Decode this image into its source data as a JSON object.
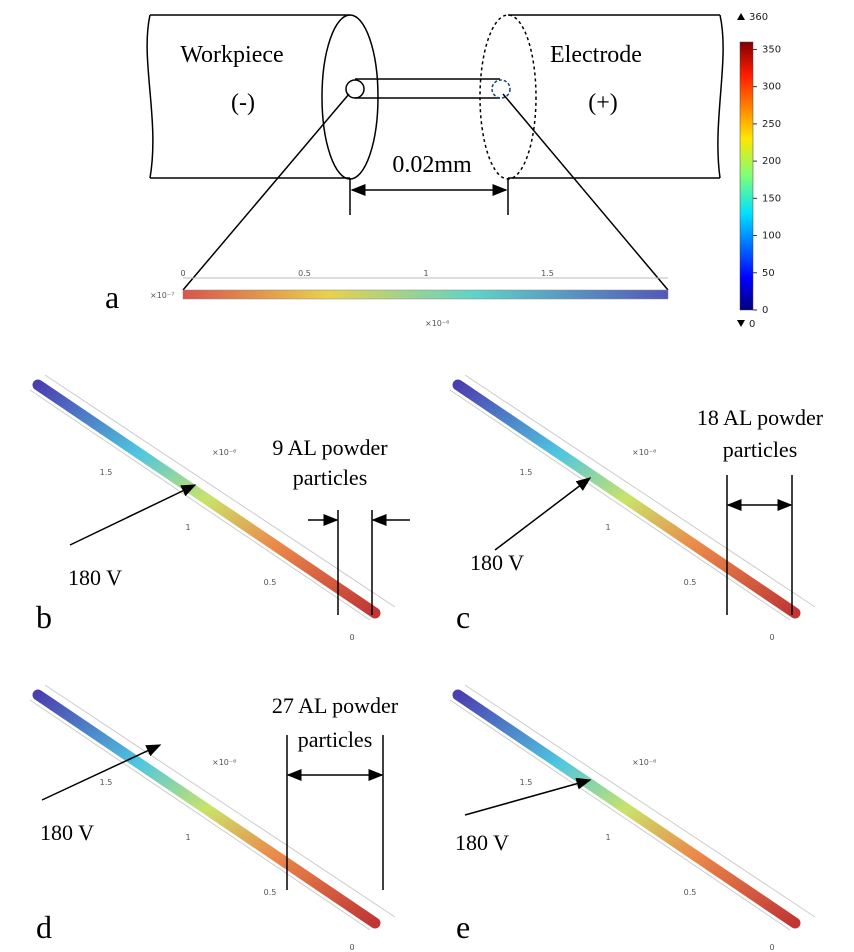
{
  "panel_a": {
    "label": "a",
    "workpiece": "Workpiece",
    "workpiece_sign": "(-)",
    "electrode": "Electrode",
    "electrode_sign": "(+)",
    "gap": "0.02mm",
    "axis_ticks": [
      "0",
      "0.5",
      "1",
      "1.5"
    ],
    "axis_unit": "×10⁻⁶",
    "side_unit": "×10⁻⁷"
  },
  "colorbar": {
    "max": 360,
    "min": 0,
    "ticks": [
      0,
      50,
      100,
      150,
      200,
      250,
      300,
      350
    ]
  },
  "panels": [
    {
      "label": "b",
      "voltage": "180 V",
      "annotation": [
        "9 AL powder",
        "particles"
      ],
      "ticks": [
        "0",
        "0.5",
        "1",
        "1.5"
      ],
      "unit": "×10⁻⁶"
    },
    {
      "label": "c",
      "voltage": "180 V",
      "annotation": [
        "18 AL powder",
        "particles"
      ],
      "ticks": [
        "0",
        "0.5",
        "1",
        "1.5"
      ],
      "unit": "×10⁻⁶"
    },
    {
      "label": "d",
      "voltage": "180 V",
      "annotation": [
        "27 AL powder",
        "particles"
      ],
      "ticks": [
        "0",
        "0.5",
        "1",
        "1.5"
      ],
      "unit": "×10⁻⁶"
    },
    {
      "label": "e",
      "voltage": "180 V",
      "ticks": [
        "0",
        "0.5",
        "1",
        "1.5"
      ],
      "unit": "×10⁻⁶"
    }
  ]
}
